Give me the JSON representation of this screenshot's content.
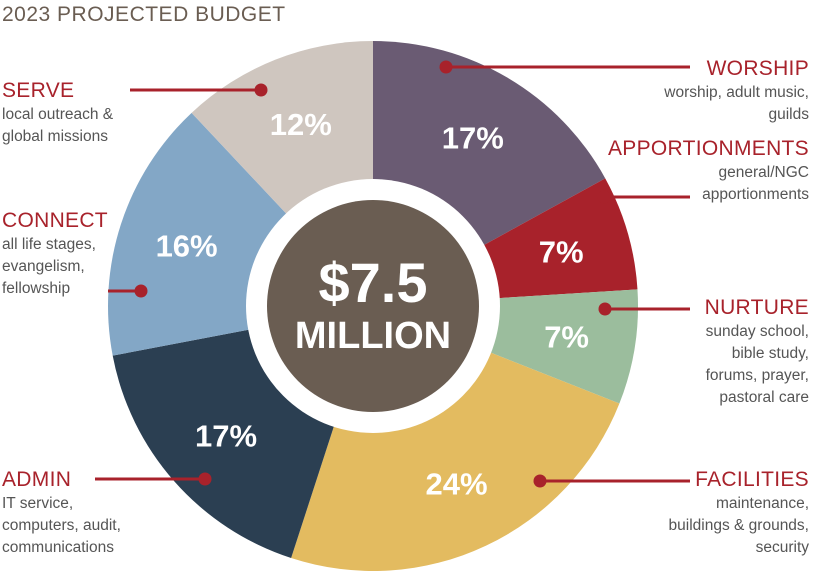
{
  "chart_data": {
    "type": "pie",
    "title": "2023 PROJECTED BUDGET",
    "center_amount": "$7.5",
    "center_unit": "MILLION",
    "slices": [
      {
        "label": "WORSHIP",
        "description": "worship, adult music,\nguilds",
        "value": 17,
        "value_label": "17%",
        "color": "#6a5b73"
      },
      {
        "label": "APPORTIONMENTS",
        "description": "general/NGC\napportionments",
        "value": 7,
        "value_label": "7%",
        "color": "#a8222b"
      },
      {
        "label": "NURTURE",
        "description": "sunday school,\nbible study,\nforums, prayer,\npastoral care",
        "value": 7,
        "value_label": "7%",
        "color": "#9bbd9d"
      },
      {
        "label": "FACILITIES",
        "description": "maintenance,\nbuildings & grounds,\nsecurity",
        "value": 24,
        "value_label": "24%",
        "color": "#e3bb60"
      },
      {
        "label": "ADMIN",
        "description": "IT service,\ncomputers, audit,\ncommunications",
        "value": 17,
        "value_label": "17%",
        "color": "#2b3f52"
      },
      {
        "label": "CONNECT",
        "description": "all life stages,\nevangelism,\nfellowship",
        "value": 16,
        "value_label": "16%",
        "color": "#83a7c6"
      },
      {
        "label": "SERVE",
        "description": "local outreach &\nglobal missions",
        "value": 12,
        "value_label": "12%",
        "color": "#cfc6bf"
      }
    ],
    "colors": {
      "accent": "#a8222b",
      "center": "#6a5d52",
      "leader": "#a8222b"
    }
  }
}
